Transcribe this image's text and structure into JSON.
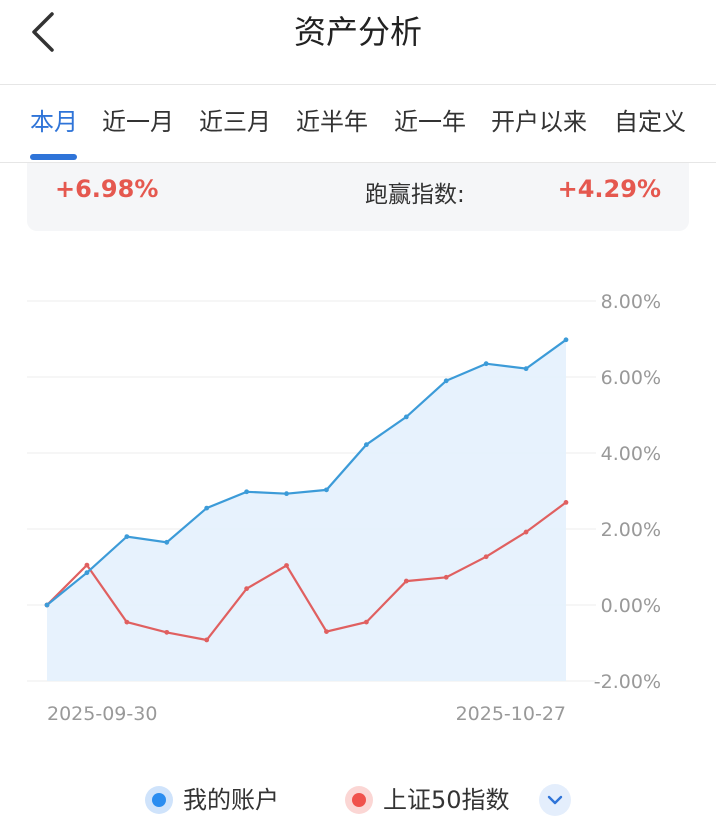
{
  "header": {
    "title": "资产分析"
  },
  "tabs": [
    {
      "label": "本月",
      "active": true
    },
    {
      "label": "近一月",
      "active": false
    },
    {
      "label": "近三月",
      "active": false
    },
    {
      "label": "近半年",
      "active": false
    },
    {
      "label": "近一年",
      "active": false
    },
    {
      "label": "开户以来",
      "active": false
    },
    {
      "label": "自定义",
      "active": false
    }
  ],
  "summary": {
    "return_value": "+6.98%",
    "outperform_label": "跑赢指数:",
    "outperform_value": "+4.29%"
  },
  "colors": {
    "accent": "#2f74d8",
    "account_line": "#3c9bd8",
    "index_line": "#e06060",
    "positive": "#e5584f"
  },
  "chart_data": {
    "type": "line",
    "x_start_label": "2025-09-30",
    "x_end_label": "2025-10-27",
    "y_ticks": [
      "8.00%",
      "6.00%",
      "4.00%",
      "2.00%",
      "0.00%",
      "-2.00%"
    ],
    "ylim": [
      -2,
      8
    ],
    "series": [
      {
        "name": "我的账户",
        "values": [
          0,
          0.85,
          1.8,
          1.65,
          2.55,
          2.98,
          2.93,
          3.03,
          4.22,
          4.95,
          5.9,
          6.35,
          6.22,
          6.98
        ]
      },
      {
        "name": "上证50指数",
        "values": [
          0,
          1.05,
          -0.45,
          -0.72,
          -0.92,
          0.43,
          1.04,
          -0.7,
          -0.45,
          0.63,
          0.73,
          1.27,
          1.92,
          2.7
        ]
      }
    ]
  },
  "legend": {
    "expand_icon": "chevron-down-icon"
  }
}
